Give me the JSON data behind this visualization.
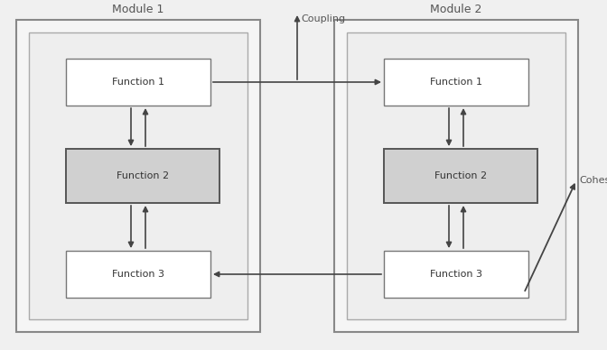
{
  "bg_color": "#f0f0f0",
  "outer_box_fill": "#f5f5f5",
  "outer_box_edge": "#888888",
  "inner_box_fill": "#eeeeee",
  "inner_box_edge": "#aaaaaa",
  "func_fill_light": "#ffffff",
  "func_fill_dark": "#d0d0d0",
  "func_edge": "#777777",
  "arrow_color": "#444444",
  "text_color": "#333333",
  "label_color": "#555555",
  "module1_label": "Module 1",
  "module2_label": "Module 2",
  "coupling_label": "Coupling",
  "cohesion_label": "Cohesion",
  "func_labels": [
    "Function 1",
    "Function 2",
    "Function 3"
  ],
  "figsize": [
    6.72,
    3.88
  ],
  "dpi": 100
}
